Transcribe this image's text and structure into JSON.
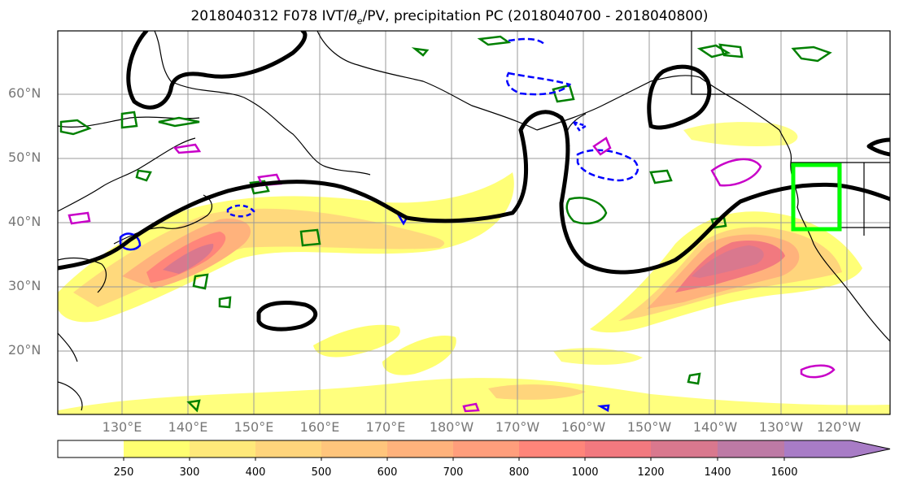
{
  "title": {
    "prefix": "2018040312 F078 IVT/",
    "theta": "θ",
    "theta_sub": "e",
    "suffix": "/PV, precipitation PC (2018040700 - 2018040800)"
  },
  "lat_labels": [
    "60°N",
    "50°N",
    "40°N",
    "30°N",
    "20°N"
  ],
  "lon_labels": [
    "130°E",
    "140°E",
    "150°E",
    "160°E",
    "170°E",
    "180°W",
    "170°W",
    "160°W",
    "150°W",
    "140°W",
    "130°W",
    "120°W"
  ],
  "colorbar": {
    "ticks": [
      "250",
      "300",
      "400",
      "500",
      "600",
      "700",
      "800",
      "1000",
      "1200",
      "1400",
      "1600"
    ],
    "colors": [
      "#ffff70",
      "#ffe97a",
      "#ffd57c",
      "#ffc57c",
      "#ffb27c",
      "#ff9e7c",
      "#ff857a",
      "#f2797f",
      "#d9788e",
      "#bd7aa5",
      "#a87cc6"
    ]
  },
  "colors": {
    "dynamic_tropopause": "#000000",
    "pv_positive": "#008000",
    "pv_negative": "#0000ff",
    "theta_e": "#c800c8",
    "region_box": "#00ff00"
  }
}
